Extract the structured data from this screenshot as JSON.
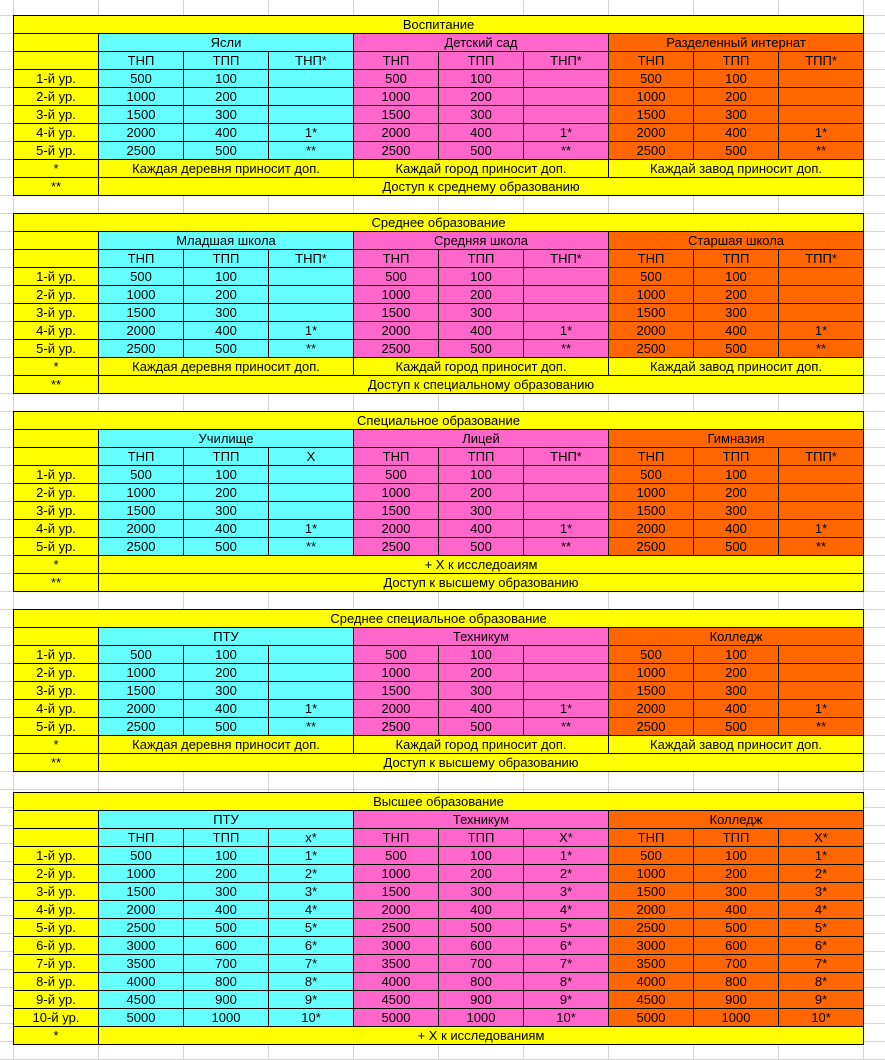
{
  "colors": {
    "yellow": "#FFFF00",
    "group_colors": [
      "#66FFFF",
      "#FF66CC",
      "#FF6600"
    ]
  },
  "sections": [
    {
      "title": "Воспитание",
      "levels": [
        "1-й ур.",
        "2-й ур.",
        "3-й ур.",
        "4-й ур.",
        "5-й ур."
      ],
      "groups": [
        {
          "name": "Ясли",
          "headers": [
            "ТНП",
            "ТПП",
            "ТНП*"
          ],
          "rows": [
            [
              "500",
              "100",
              ""
            ],
            [
              "1000",
              "200",
              ""
            ],
            [
              "1500",
              "300",
              ""
            ],
            [
              "2000",
              "400",
              "1*"
            ],
            [
              "2500",
              "500",
              "**"
            ]
          ]
        },
        {
          "name": "Детский сад",
          "headers": [
            "ТНП",
            "ТПП",
            "ТНП*"
          ],
          "rows": [
            [
              "500",
              "100",
              ""
            ],
            [
              "1000",
              "200",
              ""
            ],
            [
              "1500",
              "300",
              ""
            ],
            [
              "2000",
              "400",
              "1*"
            ],
            [
              "2500",
              "500",
              "**"
            ]
          ]
        },
        {
          "name": "Разделенный интернат",
          "headers": [
            "ТНП",
            "ТПП",
            "ТПП*"
          ],
          "rows": [
            [
              "500",
              "100",
              ""
            ],
            [
              "1000",
              "200",
              ""
            ],
            [
              "1500",
              "300",
              ""
            ],
            [
              "2000",
              "400",
              "1*"
            ],
            [
              "2500",
              "500",
              "**"
            ]
          ]
        }
      ],
      "notes": [
        {
          "marker": "*",
          "texts": [
            "Каждая деревня приносит доп.",
            "Каждай город приносит доп.",
            "Каждай завод приносит доп."
          ]
        },
        {
          "marker": "**",
          "text": "Доступ к среднему образованию"
        }
      ]
    },
    {
      "title": "Среднее образование",
      "levels": [
        "1-й ур.",
        "2-й ур.",
        "3-й ур.",
        "4-й ур.",
        "5-й ур."
      ],
      "groups": [
        {
          "name": "Младшая школа",
          "headers": [
            "ТНП",
            "ТПП",
            "ТНП*"
          ],
          "rows": [
            [
              "500",
              "100",
              ""
            ],
            [
              "1000",
              "200",
              ""
            ],
            [
              "1500",
              "300",
              ""
            ],
            [
              "2000",
              "400",
              "1*"
            ],
            [
              "2500",
              "500",
              "**"
            ]
          ]
        },
        {
          "name": "Средняя школа",
          "headers": [
            "ТНП",
            "ТПП",
            "ТНП*"
          ],
          "rows": [
            [
              "500",
              "100",
              ""
            ],
            [
              "1000",
              "200",
              ""
            ],
            [
              "1500",
              "300",
              ""
            ],
            [
              "2000",
              "400",
              "1*"
            ],
            [
              "2500",
              "500",
              "**"
            ]
          ]
        },
        {
          "name": "Старшая школа",
          "headers": [
            "ТНП",
            "ТПП",
            "ТПП*"
          ],
          "rows": [
            [
              "500",
              "100",
              ""
            ],
            [
              "1000",
              "200",
              ""
            ],
            [
              "1500",
              "300",
              ""
            ],
            [
              "2000",
              "400",
              "1*"
            ],
            [
              "2500",
              "500",
              "**"
            ]
          ]
        }
      ],
      "notes": [
        {
          "marker": "*",
          "texts": [
            "Каждая деревня приносит доп.",
            "Каждай город приносит доп.",
            "Каждай завод приносит доп."
          ]
        },
        {
          "marker": "**",
          "text": "Доступ к специальному образованию"
        }
      ]
    },
    {
      "title": "Специальное образование",
      "levels": [
        "1-й ур.",
        "2-й ур.",
        "3-й ур.",
        "4-й ур.",
        "5-й ур."
      ],
      "groups": [
        {
          "name": "Училище",
          "headers": [
            "ТНП",
            "ТПП",
            "Х"
          ],
          "rows": [
            [
              "500",
              "100",
              ""
            ],
            [
              "1000",
              "200",
              ""
            ],
            [
              "1500",
              "300",
              ""
            ],
            [
              "2000",
              "400",
              "1*"
            ],
            [
              "2500",
              "500",
              "**"
            ]
          ]
        },
        {
          "name": "Лицей",
          "headers": [
            "ТНП",
            "ТПП",
            "ТНП*"
          ],
          "rows": [
            [
              "500",
              "100",
              ""
            ],
            [
              "1000",
              "200",
              ""
            ],
            [
              "1500",
              "300",
              ""
            ],
            [
              "2000",
              "400",
              "1*"
            ],
            [
              "2500",
              "500",
              "**"
            ]
          ]
        },
        {
          "name": "Гимназия",
          "headers": [
            "ТНП",
            "ТПП",
            "ТПП*"
          ],
          "rows": [
            [
              "500",
              "100",
              ""
            ],
            [
              "1000",
              "200",
              ""
            ],
            [
              "1500",
              "300",
              ""
            ],
            [
              "2000",
              "400",
              "1*"
            ],
            [
              "2500",
              "500",
              "**"
            ]
          ]
        }
      ],
      "notes": [
        {
          "marker": "*",
          "text": "+ Х к исследоаиям"
        },
        {
          "marker": "**",
          "text": "Доступ к высшему образованию"
        }
      ]
    },
    {
      "title": "Среднее специальное образование",
      "levels": [
        "1-й ур.",
        "2-й ур.",
        "3-й ур.",
        "4-й ур.",
        "5-й ур."
      ],
      "groups": [
        {
          "name": "ПТУ",
          "headers": null,
          "rows": [
            [
              "500",
              "100",
              ""
            ],
            [
              "1000",
              "200",
              ""
            ],
            [
              "1500",
              "300",
              ""
            ],
            [
              "2000",
              "400",
              "1*"
            ],
            [
              "2500",
              "500",
              "**"
            ]
          ]
        },
        {
          "name": "Техникум",
          "headers": null,
          "rows": [
            [
              "500",
              "100",
              ""
            ],
            [
              "1000",
              "200",
              ""
            ],
            [
              "1500",
              "300",
              ""
            ],
            [
              "2000",
              "400",
              "1*"
            ],
            [
              "2500",
              "500",
              "**"
            ]
          ]
        },
        {
          "name": "Колледж",
          "headers": null,
          "rows": [
            [
              "500",
              "100",
              ""
            ],
            [
              "1000",
              "200",
              ""
            ],
            [
              "1500",
              "300",
              ""
            ],
            [
              "2000",
              "400",
              "1*"
            ],
            [
              "2500",
              "500",
              "**"
            ]
          ]
        }
      ],
      "notes": [
        {
          "marker": "*",
          "texts": [
            "Каждая деревня приносит доп.",
            "Каждай город приносит доп.",
            "Каждай завод приносит доп."
          ]
        },
        {
          "marker": "**",
          "text": "Доступ к высшему образованию"
        }
      ]
    },
    {
      "title": "Высшее образование",
      "levels": [
        "1-й ур.",
        "2-й ур.",
        "3-й ур.",
        "4-й ур.",
        "5-й ур.",
        "6-й ур.",
        "7-й ур.",
        "8-й ур.",
        "9-й ур.",
        "10-й ур."
      ],
      "groups": [
        {
          "name": "ПТУ",
          "headers": [
            "ТНП",
            "ТПП",
            "х*"
          ],
          "rows": [
            [
              "500",
              "100",
              "1*"
            ],
            [
              "1000",
              "200",
              "2*"
            ],
            [
              "1500",
              "300",
              "3*"
            ],
            [
              "2000",
              "400",
              "4*"
            ],
            [
              "2500",
              "500",
              "5*"
            ],
            [
              "3000",
              "600",
              "6*"
            ],
            [
              "3500",
              "700",
              "7*"
            ],
            [
              "4000",
              "800",
              "8*"
            ],
            [
              "4500",
              "900",
              "9*"
            ],
            [
              "5000",
              "1000",
              "10*"
            ]
          ]
        },
        {
          "name": "Техникум",
          "headers": [
            "ТНП",
            "ТПП",
            "Х*"
          ],
          "rows": [
            [
              "500",
              "100",
              "1*"
            ],
            [
              "1000",
              "200",
              "2*"
            ],
            [
              "1500",
              "300",
              "3*"
            ],
            [
              "2000",
              "400",
              "4*"
            ],
            [
              "2500",
              "500",
              "5*"
            ],
            [
              "3000",
              "600",
              "6*"
            ],
            [
              "3500",
              "700",
              "7*"
            ],
            [
              "4000",
              "800",
              "8*"
            ],
            [
              "4500",
              "900",
              "9*"
            ],
            [
              "5000",
              "1000",
              "10*"
            ]
          ]
        },
        {
          "name": "Колледж",
          "headers": [
            "ТНП",
            "ТПП",
            "Х*"
          ],
          "rows": [
            [
              "500",
              "100",
              "1*"
            ],
            [
              "1000",
              "200",
              "2*"
            ],
            [
              "1500",
              "300",
              "3*"
            ],
            [
              "2000",
              "400",
              "4*"
            ],
            [
              "2500",
              "500",
              "5*"
            ],
            [
              "3000",
              "600",
              "6*"
            ],
            [
              "3500",
              "700",
              "7*"
            ],
            [
              "4000",
              "800",
              "8*"
            ],
            [
              "4500",
              "900",
              "9*"
            ],
            [
              "5000",
              "1000",
              "10*"
            ]
          ]
        }
      ],
      "notes": [
        {
          "marker": "*",
          "text": "+ Х к исследованиям"
        }
      ]
    }
  ]
}
